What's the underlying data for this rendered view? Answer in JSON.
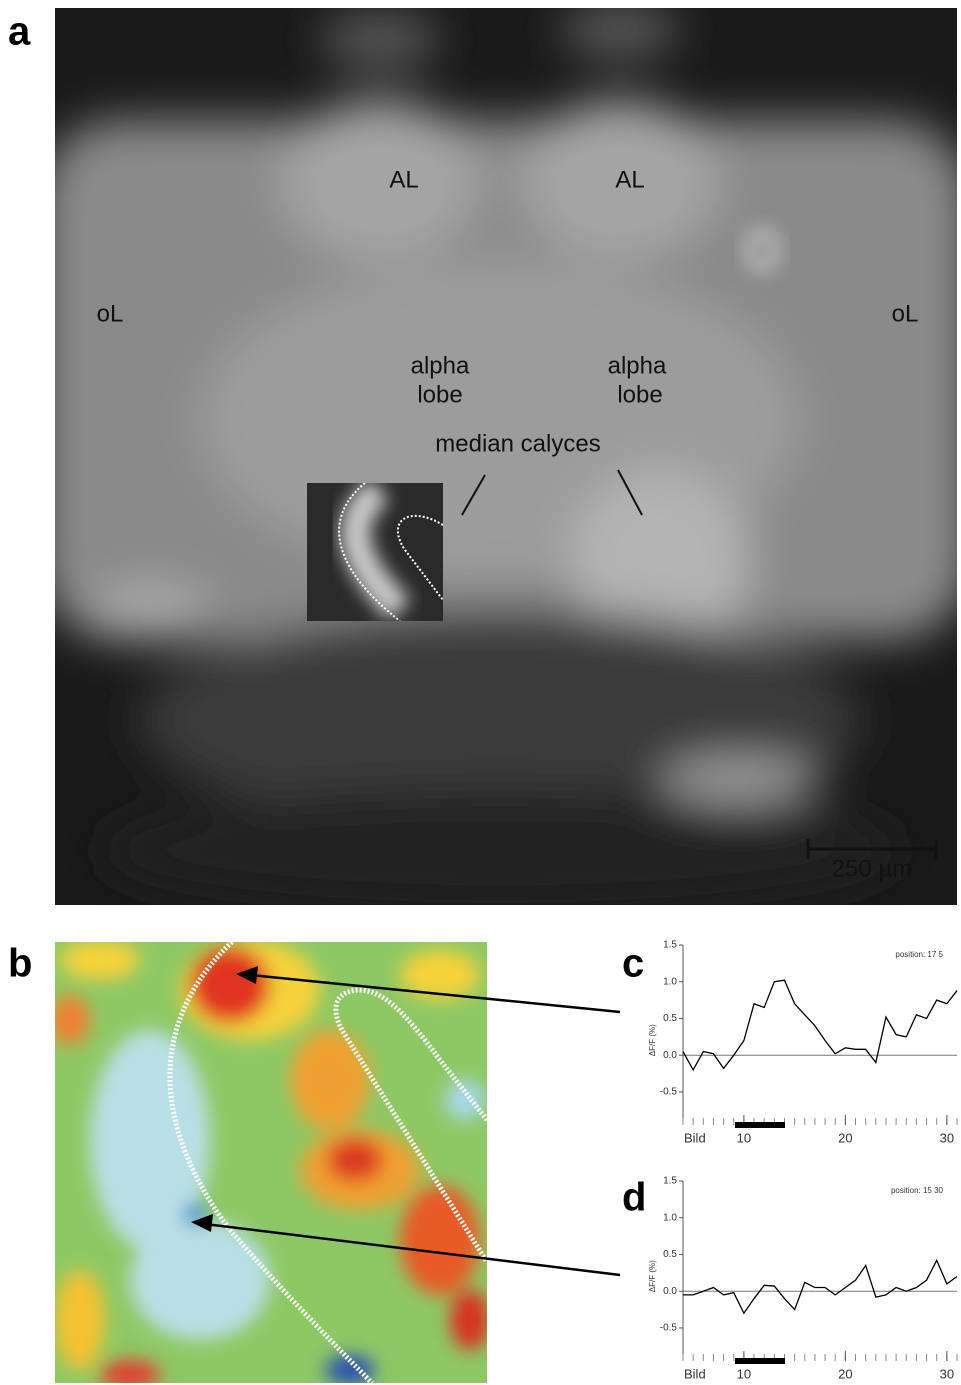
{
  "panel_labels": [
    "a",
    "b",
    "c",
    "d"
  ],
  "annotations": [
    "AL",
    "AL",
    "oL",
    "oL",
    "alpha",
    "lobe",
    "alpha",
    "lobe",
    "median calyces"
  ],
  "scale_bar": "250 µm",
  "chart_data": [
    {
      "type": "line",
      "annotation": "position: 17 5",
      "x_label": "Bild",
      "y_label": "ΔF/F   (%)",
      "x": [
        4,
        5,
        6,
        7,
        8,
        9,
        10,
        11,
        12,
        13,
        14,
        15,
        16,
        17,
        18,
        19,
        20,
        21,
        22,
        23,
        24,
        25,
        26,
        27,
        28,
        29,
        30,
        31
      ],
      "values": [
        0.05,
        -0.2,
        0.05,
        0.02,
        -0.18,
        0.0,
        0.2,
        0.7,
        0.65,
        1.0,
        1.02,
        0.7,
        0.55,
        0.4,
        0.2,
        0.02,
        0.1,
        0.08,
        0.08,
        -0.1,
        0.52,
        0.28,
        0.25,
        0.55,
        0.5,
        0.75,
        0.7,
        0.88
      ],
      "color": "#000000",
      "xlim": [
        4,
        31
      ],
      "xticks": [
        10,
        20,
        30
      ],
      "ylim": [
        -0.95,
        1.5
      ],
      "yticks": [
        -0.5,
        {
          "value": 0,
          "label": "0.0"
        },
        0.5,
        {
          "value": 1,
          "label": "1.0"
        },
        1.5
      ]
    },
    {
      "type": "line",
      "annotation": "position: 15 30",
      "x_label": "Bild",
      "y_label": "ΔF/F   (%)",
      "x": [
        4,
        5,
        6,
        7,
        8,
        9,
        10,
        11,
        12,
        13,
        14,
        15,
        16,
        17,
        18,
        19,
        20,
        21,
        22,
        23,
        24,
        25,
        26,
        27,
        28,
        29,
        30,
        31
      ],
      "values": [
        -0.05,
        -0.05,
        0.0,
        0.05,
        -0.05,
        -0.02,
        -0.3,
        -0.1,
        0.08,
        0.07,
        -0.1,
        -0.25,
        0.12,
        0.05,
        0.05,
        -0.05,
        0.05,
        0.15,
        0.35,
        -0.08,
        -0.05,
        0.05,
        0.0,
        0.05,
        0.15,
        0.42,
        0.1,
        0.2
      ],
      "color": "#000000",
      "xlim": [
        4,
        31
      ],
      "xticks": [
        10,
        20,
        30
      ],
      "ylim": [
        -0.95,
        1.5
      ],
      "yticks": [
        -0.5,
        {
          "value": 0,
          "label": "0.0"
        },
        0.5,
        {
          "value": 1,
          "label": "1.0"
        },
        1.5
      ]
    }
  ]
}
